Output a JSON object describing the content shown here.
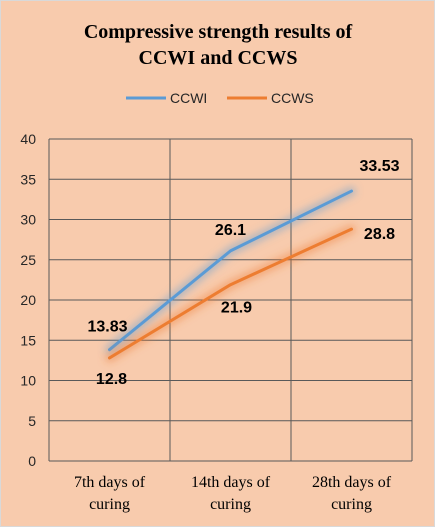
{
  "chart_data": {
    "type": "line",
    "title_lines": [
      "Compressive strength results of",
      "CCWI and CCWS"
    ],
    "categories": [
      [
        "7th days of",
        "curing"
      ],
      [
        "14th days of",
        "curing"
      ],
      [
        "28th days of",
        "curing"
      ]
    ],
    "series": [
      {
        "name": "CCWI",
        "values": [
          13.83,
          26.1,
          33.53
        ],
        "color": "#5b9bd5",
        "labels": [
          "13.83",
          "26.1",
          "33.53"
        ]
      },
      {
        "name": "CCWS",
        "values": [
          12.8,
          21.9,
          28.8
        ],
        "color": "#ed7d31",
        "labels": [
          "12.8",
          "21.9",
          "28.8"
        ]
      }
    ],
    "ylim": [
      0,
      40
    ],
    "y_ticks": [
      "0",
      "5",
      "10",
      "15",
      "20",
      "25",
      "30",
      "35",
      "40"
    ],
    "grid": true,
    "legend_position": "top",
    "background_color": "#f8cbad",
    "gridline_color": "#595959"
  }
}
